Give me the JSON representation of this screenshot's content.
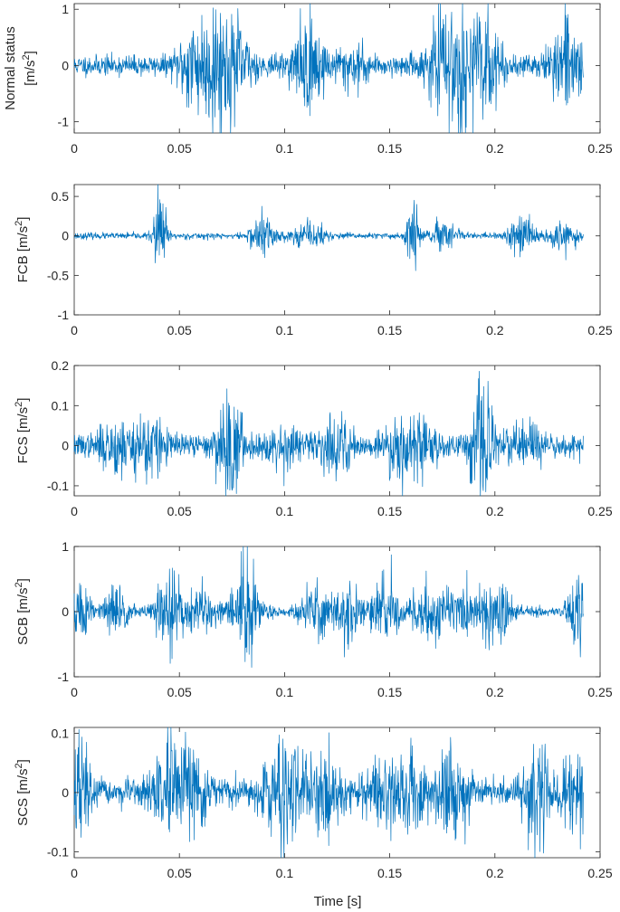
{
  "figure": {
    "xlabel": "Time [s]"
  },
  "chart_data": [
    {
      "type": "line",
      "ylabel_lines": [
        "Normal status",
        "[m/s",
        "2",
        "]"
      ],
      "ylabel_prefix": "",
      "xlim": [
        0,
        0.25
      ],
      "ylim": [
        -1.2,
        1.1
      ],
      "xticks": [
        0,
        0.05,
        0.1,
        0.15,
        0.2,
        0.25
      ],
      "xtick_labels": [
        "0",
        "0.05",
        "0.1",
        "0.15",
        "0.2",
        "0.25"
      ],
      "yticks": [
        -1,
        0,
        1
      ],
      "ytick_labels": [
        "-1",
        "0",
        "1"
      ],
      "color": "#0072BD",
      "duration": 0.242,
      "base_amplitude": 0.16,
      "bursts": [
        {
          "t": 0.055,
          "a": 0.55,
          "w": 0.004
        },
        {
          "t": 0.067,
          "a": 0.9,
          "w": 0.006
        },
        {
          "t": 0.078,
          "a": 0.45,
          "w": 0.005
        },
        {
          "t": 0.112,
          "a": 0.75,
          "w": 0.005
        },
        {
          "t": 0.132,
          "a": 0.3,
          "w": 0.005
        },
        {
          "t": 0.174,
          "a": 0.6,
          "w": 0.005
        },
        {
          "t": 0.186,
          "a": 0.9,
          "w": 0.006
        },
        {
          "t": 0.198,
          "a": 0.35,
          "w": 0.005
        },
        {
          "t": 0.234,
          "a": 0.55,
          "w": 0.006
        }
      ]
    },
    {
      "type": "line",
      "ylabel_lines": [
        "FCB [m/s",
        "2",
        "]"
      ],
      "xlim": [
        0,
        0.25
      ],
      "ylim": [
        -1,
        0.65
      ],
      "xticks": [
        0,
        0.05,
        0.1,
        0.15,
        0.2,
        0.25
      ],
      "xtick_labels": [
        "0",
        "0.05",
        "0.1",
        "0.15",
        "0.2",
        "0.25"
      ],
      "yticks": [
        -1,
        -0.5,
        0,
        0.5
      ],
      "ytick_labels": [
        "-1",
        "-0.5",
        "0",
        "0.5"
      ],
      "color": "#0072BD",
      "duration": 0.242,
      "base_amplitude": 0.035,
      "bursts": [
        {
          "t": 0.041,
          "a": 0.6,
          "w": 0.002
        },
        {
          "t": 0.09,
          "a": 0.25,
          "w": 0.004
        },
        {
          "t": 0.112,
          "a": 0.15,
          "w": 0.005
        },
        {
          "t": 0.161,
          "a": 0.6,
          "w": 0.002
        },
        {
          "t": 0.175,
          "a": 0.12,
          "w": 0.005
        },
        {
          "t": 0.212,
          "a": 0.25,
          "w": 0.004
        },
        {
          "t": 0.232,
          "a": 0.15,
          "w": 0.005
        }
      ]
    },
    {
      "type": "line",
      "ylabel_lines": [
        "FCS [m/s",
        "2",
        "]"
      ],
      "xlim": [
        0,
        0.25
      ],
      "ylim": [
        -0.125,
        0.2
      ],
      "xticks": [
        0,
        0.05,
        0.1,
        0.15,
        0.2,
        0.25
      ],
      "xtick_labels": [
        "0",
        "0.05",
        "0.1",
        "0.15",
        "0.2",
        "0.25"
      ],
      "yticks": [
        -0.1,
        0,
        0.1,
        0.2
      ],
      "ytick_labels": [
        "-0.1",
        "0",
        "0.1",
        "0.2"
      ],
      "color": "#0072BD",
      "duration": 0.242,
      "base_amplitude": 0.025,
      "bursts": [
        {
          "t": 0.02,
          "a": 0.05,
          "w": 0.005
        },
        {
          "t": 0.035,
          "a": 0.07,
          "w": 0.005
        },
        {
          "t": 0.074,
          "a": 0.12,
          "w": 0.004
        },
        {
          "t": 0.1,
          "a": 0.04,
          "w": 0.005
        },
        {
          "t": 0.125,
          "a": 0.05,
          "w": 0.005
        },
        {
          "t": 0.153,
          "a": 0.06,
          "w": 0.005
        },
        {
          "t": 0.165,
          "a": 0.05,
          "w": 0.005
        },
        {
          "t": 0.194,
          "a": 0.12,
          "w": 0.004
        },
        {
          "t": 0.215,
          "a": 0.05,
          "w": 0.005
        }
      ]
    },
    {
      "type": "line",
      "ylabel_lines": [
        "SCB [m/s",
        "2",
        "]"
      ],
      "xlim": [
        0,
        0.25
      ],
      "ylim": [
        -1,
        1
      ],
      "xticks": [
        0,
        0.05,
        0.1,
        0.15,
        0.2,
        0.25
      ],
      "xtick_labels": [
        "0",
        "0.05",
        "0.1",
        "0.15",
        "0.2",
        "0.25"
      ],
      "yticks": [
        -1,
        0,
        1
      ],
      "ytick_labels": [
        "-1",
        "0",
        "1"
      ],
      "color": "#0072BD",
      "duration": 0.242,
      "base_amplitude": 0.07,
      "bursts": [
        {
          "t": 0.003,
          "a": 0.5,
          "w": 0.003
        },
        {
          "t": 0.02,
          "a": 0.35,
          "w": 0.004
        },
        {
          "t": 0.045,
          "a": 0.65,
          "w": 0.004
        },
        {
          "t": 0.06,
          "a": 0.35,
          "w": 0.005
        },
        {
          "t": 0.081,
          "a": 0.85,
          "w": 0.004
        },
        {
          "t": 0.115,
          "a": 0.35,
          "w": 0.005
        },
        {
          "t": 0.13,
          "a": 0.5,
          "w": 0.004
        },
        {
          "t": 0.148,
          "a": 0.4,
          "w": 0.005
        },
        {
          "t": 0.168,
          "a": 0.4,
          "w": 0.005
        },
        {
          "t": 0.183,
          "a": 0.35,
          "w": 0.006
        },
        {
          "t": 0.2,
          "a": 0.5,
          "w": 0.005
        },
        {
          "t": 0.239,
          "a": 0.6,
          "w": 0.003
        }
      ]
    },
    {
      "type": "line",
      "ylabel_lines": [
        "SCS [m/s",
        "2",
        "]"
      ],
      "xlim": [
        0,
        0.25
      ],
      "ylim": [
        -0.11,
        0.11
      ],
      "xticks": [
        0,
        0.05,
        0.1,
        0.15,
        0.2,
        0.25
      ],
      "xtick_labels": [
        "0",
        "0.05",
        "0.1",
        "0.15",
        "0.2",
        "0.25"
      ],
      "yticks": [
        -0.1,
        0,
        0.1
      ],
      "ytick_labels": [
        "-0.1",
        "0",
        "0.1"
      ],
      "color": "#0072BD",
      "duration": 0.242,
      "base_amplitude": 0.02,
      "bursts": [
        {
          "t": 0.003,
          "a": 0.08,
          "w": 0.003
        },
        {
          "t": 0.045,
          "a": 0.06,
          "w": 0.005
        },
        {
          "t": 0.058,
          "a": 0.05,
          "w": 0.005
        },
        {
          "t": 0.1,
          "a": 0.07,
          "w": 0.006
        },
        {
          "t": 0.12,
          "a": 0.06,
          "w": 0.005
        },
        {
          "t": 0.145,
          "a": 0.04,
          "w": 0.005
        },
        {
          "t": 0.16,
          "a": 0.06,
          "w": 0.005
        },
        {
          "t": 0.18,
          "a": 0.06,
          "w": 0.005
        },
        {
          "t": 0.22,
          "a": 0.08,
          "w": 0.004
        },
        {
          "t": 0.238,
          "a": 0.05,
          "w": 0.005
        }
      ]
    }
  ]
}
